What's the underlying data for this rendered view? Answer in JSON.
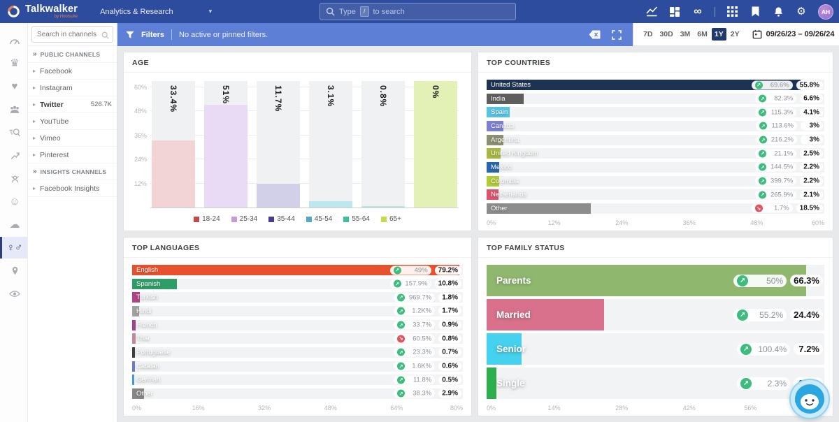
{
  "topbar": {
    "brand": "Talkwalker",
    "brand_sub": "by Hootsuite",
    "app_menu": "Analytics & Research",
    "search_prefix": "Type",
    "search_key": "/",
    "search_suffix": "to search",
    "avatar_initials": "AH"
  },
  "filter_bar": {
    "filters_label": "Filters",
    "status_text": "No active or pinned filters."
  },
  "date_controls": {
    "ranges": [
      "7D",
      "30D",
      "3M",
      "6M",
      "1Y",
      "2Y"
    ],
    "selected_range": "1Y",
    "date_range": "09/26/23 – 09/26/24"
  },
  "sidebar": {
    "search_placeholder": "Search in channels",
    "rail": [
      {
        "icon": "gauge"
      },
      {
        "icon": "crown"
      },
      {
        "icon": "heart"
      },
      {
        "icon": "people"
      },
      {
        "icon": "listening"
      },
      {
        "icon": "trend"
      },
      {
        "icon": "influencer"
      },
      {
        "icon": "smiley"
      },
      {
        "icon": "cloud"
      },
      {
        "icon": "gender",
        "selected": true
      },
      {
        "icon": "map"
      },
      {
        "icon": "eye"
      }
    ],
    "sections": [
      {
        "header": "PUBLIC CHANNELS",
        "items": [
          {
            "label": "Facebook"
          },
          {
            "label": "Instagram"
          },
          {
            "label": "Twitter",
            "count": "526.7K",
            "bold": true
          },
          {
            "label": "YouTube"
          },
          {
            "label": "Vimeo"
          },
          {
            "label": "Pinterest"
          }
        ]
      },
      {
        "header": "INSIGHTS CHANNELS",
        "items": [
          {
            "label": "Facebook Insights"
          }
        ]
      }
    ]
  },
  "chart_data": [
    {
      "id": "age",
      "type": "bar",
      "title": "AGE",
      "categories": [
        "18-24",
        "25-34",
        "35-44",
        "45-54",
        "55-64",
        "65+"
      ],
      "values": [
        33.4,
        51,
        11.7,
        3.1,
        0.8,
        0
      ],
      "value_labels": [
        "33.4%",
        "51%",
        "11.7%",
        "3.1%",
        "0.8%",
        "0%"
      ],
      "bar_colors": [
        "#f2d3d6",
        "#e9daf5",
        "#d2cfe9",
        "#bce7ee",
        "#b9e9de",
        "#e3f0b6"
      ],
      "column_bg": [
        "#eff1f2",
        "#eff1f2",
        "#eff1f2",
        "#eff1f2",
        "#eff1f2",
        "#e3f0b6"
      ],
      "legend_colors": [
        "#bf4b4b",
        "#c79bd9",
        "#463d8f",
        "#57a7c9",
        "#3fbf9f",
        "#c7d94e"
      ],
      "ylim": [
        0,
        63
      ],
      "yticks": [
        {
          "v": 12,
          "label": "12%"
        },
        {
          "v": 24,
          "label": "24%"
        },
        {
          "v": 36,
          "label": "36%"
        },
        {
          "v": 48,
          "label": "48%"
        },
        {
          "v": 60,
          "label": "60%"
        }
      ],
      "grid": true,
      "legend_position": "bottom"
    },
    {
      "id": "countries",
      "type": "hbar",
      "title": "TOP COUNTRIES",
      "xlim": [
        0,
        60
      ],
      "xticks": [
        {
          "v": 0,
          "label": "0%"
        },
        {
          "v": 12,
          "label": "12%"
        },
        {
          "v": 24,
          "label": "24%"
        },
        {
          "v": 36,
          "label": "36%"
        },
        {
          "v": 48,
          "label": "48%"
        },
        {
          "v": 60,
          "label": "60%"
        }
      ],
      "rows": [
        {
          "label": "United States",
          "value": 55.8,
          "share": "55.8%",
          "change": "69.6%",
          "trend": "up",
          "color": "#1d3354"
        },
        {
          "label": "India",
          "value": 6.6,
          "share": "6.6%",
          "change": "82.3%",
          "trend": "up",
          "color": "#5e5e5e"
        },
        {
          "label": "Spain",
          "value": 4.1,
          "share": "4.1%",
          "change": "115.3%",
          "trend": "up",
          "color": "#55c5e3"
        },
        {
          "label": "Canada",
          "value": 3,
          "share": "3%",
          "change": "113.6%",
          "trend": "up",
          "color": "#7b80d2"
        },
        {
          "label": "Argentina",
          "value": 3,
          "share": "3%",
          "change": "216.2%",
          "trend": "up",
          "color": "#8d9070"
        },
        {
          "label": "United Kingdom",
          "value": 2.5,
          "share": "2.5%",
          "change": "21.1%",
          "trend": "up",
          "color": "#a9b83e"
        },
        {
          "label": "Mexico",
          "value": 2.2,
          "share": "2.2%",
          "change": "144.5%",
          "trend": "up",
          "color": "#2566b0"
        },
        {
          "label": "Colombia",
          "value": 2.2,
          "share": "2.2%",
          "change": "399.7%",
          "trend": "up",
          "color": "#b5cb36"
        },
        {
          "label": "Netherlands",
          "value": 2.1,
          "share": "2.1%",
          "change": "265.9%",
          "trend": "up",
          "color": "#e0536e"
        },
        {
          "label": "Other",
          "value": 18.5,
          "share": "18.5%",
          "change": "1.7%",
          "trend": "down",
          "color": "#8d8d8d"
        }
      ]
    },
    {
      "id": "languages",
      "type": "hbar",
      "title": "TOP LANGUAGES",
      "xlim": [
        0,
        80
      ],
      "xticks": [
        {
          "v": 0,
          "label": "0%"
        },
        {
          "v": 16,
          "label": "16%"
        },
        {
          "v": 32,
          "label": "32%"
        },
        {
          "v": 48,
          "label": "48%"
        },
        {
          "v": 64,
          "label": "64%"
        },
        {
          "v": 80,
          "label": "80%"
        }
      ],
      "rows": [
        {
          "label": "English",
          "value": 79.2,
          "share": "79.2%",
          "change": "49%",
          "trend": "up",
          "color": "#e8512e"
        },
        {
          "label": "Spanish",
          "value": 10.8,
          "share": "10.8%",
          "change": "157.9%",
          "trend": "up",
          "color": "#2d9e68"
        },
        {
          "label": "Turkish",
          "value": 1.8,
          "share": "1.8%",
          "change": "969.7%",
          "trend": "up",
          "color": "#b34384"
        },
        {
          "label": "Hindi",
          "value": 1.7,
          "share": "1.7%",
          "change": "1.2K%",
          "trend": "up",
          "color": "#a2a2a2"
        },
        {
          "label": "French",
          "value": 0.9,
          "share": "0.9%",
          "change": "33.7%",
          "trend": "up",
          "color": "#a53f8f"
        },
        {
          "label": "Thai",
          "value": 0.8,
          "share": "0.8%",
          "change": "60.5%",
          "trend": "down",
          "color": "#c28a9b"
        },
        {
          "label": "Portuguese",
          "value": 0.7,
          "share": "0.7%",
          "change": "23.3%",
          "trend": "up",
          "color": "#3f3f3f"
        },
        {
          "label": "Catalan",
          "value": 0.6,
          "share": "0.6%",
          "change": "1.6K%",
          "trend": "up",
          "color": "#6c7ace"
        },
        {
          "label": "German",
          "value": 0.5,
          "share": "0.5%",
          "change": "11.8%",
          "trend": "up",
          "color": "#4a97d2"
        },
        {
          "label": "Other",
          "value": 2.9,
          "share": "2.9%",
          "change": "38.3%",
          "trend": "up",
          "color": "#878787"
        }
      ]
    },
    {
      "id": "family_status",
      "type": "hbar",
      "title": "TOP FAMILY STATUS",
      "size": "large",
      "xlim": [
        0,
        70
      ],
      "xticks": [
        {
          "v": 0,
          "label": "0%"
        },
        {
          "v": 14,
          "label": "14%"
        },
        {
          "v": 28,
          "label": "28%"
        },
        {
          "v": 42,
          "label": "42%"
        },
        {
          "v": 56,
          "label": "56%"
        }
      ],
      "rows": [
        {
          "label": "Parents",
          "value": 66.3,
          "share": "66.3%",
          "change": "50%",
          "trend": "up",
          "color": "#8fb86e"
        },
        {
          "label": "Married",
          "value": 24.4,
          "share": "24.4%",
          "change": "55.2%",
          "trend": "up",
          "color": "#d9718c"
        },
        {
          "label": "Senior",
          "value": 7.2,
          "share": "7.2%",
          "change": "100.4%",
          "trend": "up",
          "color": "#45d2ee"
        },
        {
          "label": "Single",
          "value": 2.1,
          "share": "2.1%",
          "change": "2.3%",
          "trend": "up",
          "color": "#2fae4e"
        }
      ]
    }
  ]
}
